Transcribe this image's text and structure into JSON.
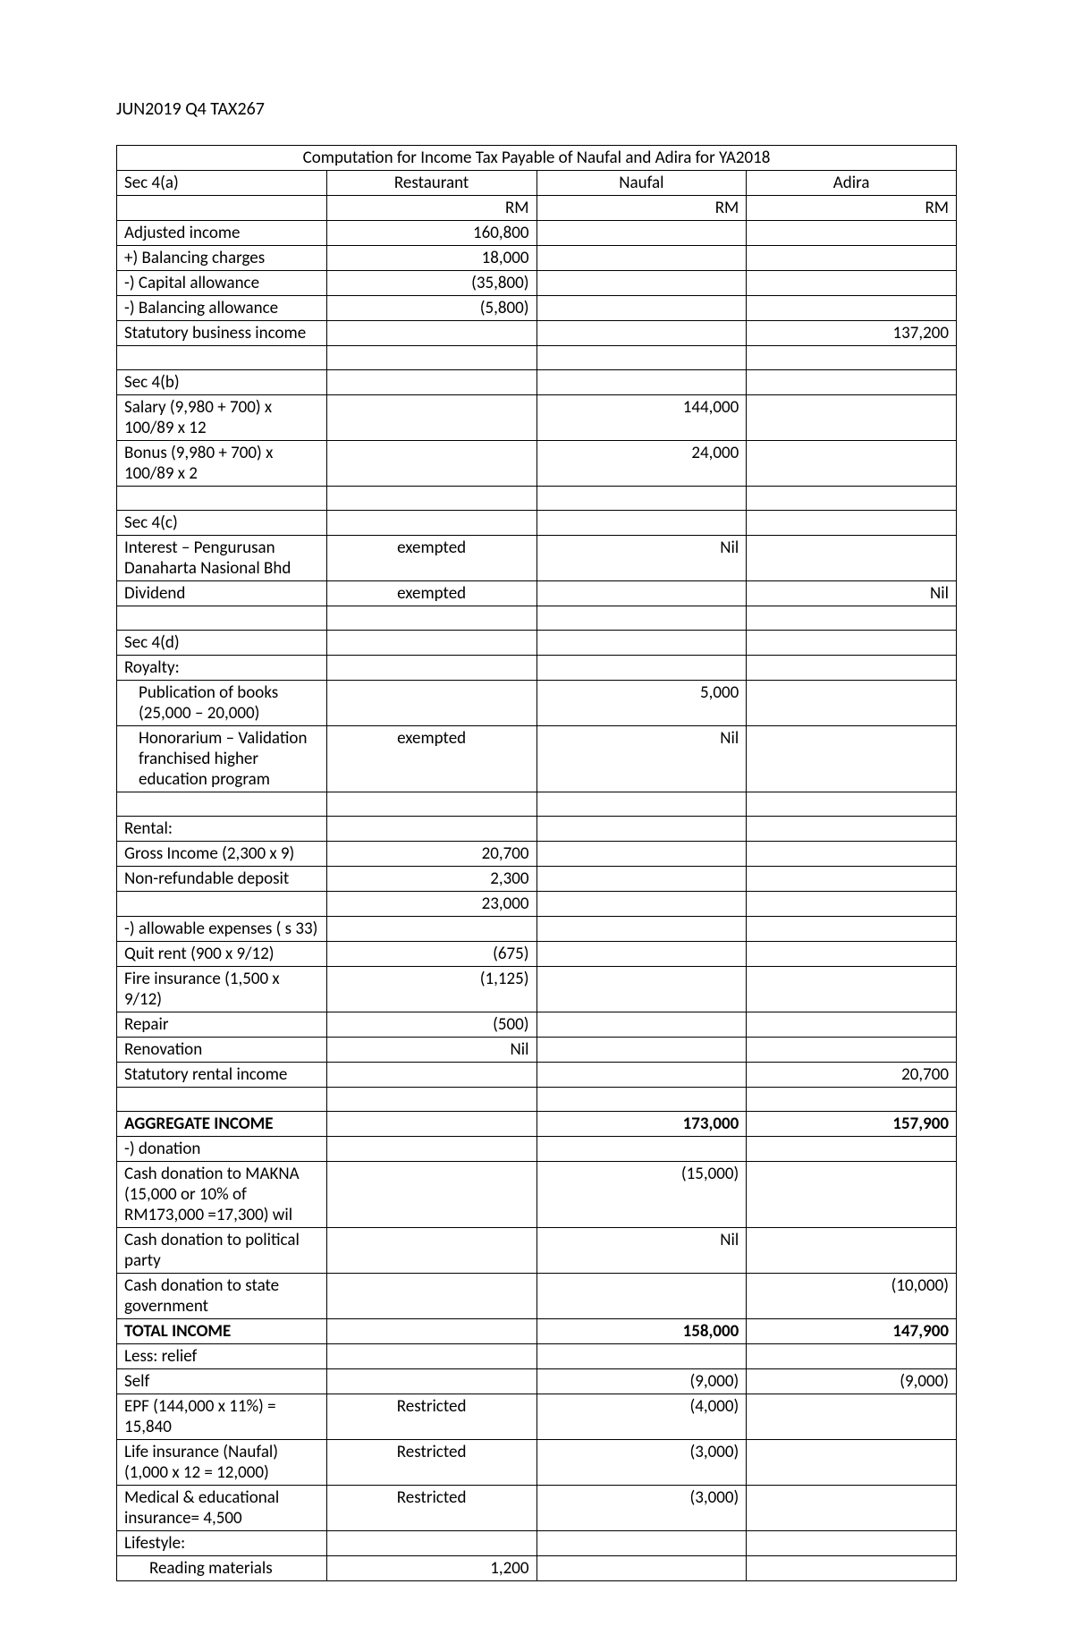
{
  "doc": {
    "title": "JUN2019 Q4 TAX267"
  },
  "table": {
    "caption": "Computation for Income Tax Payable of Naufal and Adira for YA2018",
    "col_headers": {
      "desc": "Sec 4(a)",
      "restaurant": "Restaurant",
      "naufal": "Naufal",
      "adira": "Adira"
    },
    "unit_row": {
      "restaurant": "RM",
      "naufal": "RM",
      "adira": "RM"
    },
    "rows": [
      {
        "desc": "Adjusted income",
        "r": "160,800",
        "n": "",
        "a": ""
      },
      {
        "desc": "+) Balancing charges",
        "r": "18,000",
        "n": "",
        "a": ""
      },
      {
        "desc": "-) Capital allowance",
        "r": "(35,800)",
        "n": "",
        "a": ""
      },
      {
        "desc": "-) Balancing allowance",
        "r": "(5,800)",
        "n": "",
        "a": ""
      },
      {
        "desc": "Statutory business income",
        "r": "",
        "n": "",
        "a": "137,200"
      },
      {
        "desc": "",
        "r": "",
        "n": "",
        "a": ""
      },
      {
        "desc": "Sec 4(b)",
        "r": "",
        "n": "",
        "a": ""
      },
      {
        "desc": "Salary (9,980 + 700) x 100/89 x 12",
        "r": "",
        "n": "144,000",
        "a": ""
      },
      {
        "desc": "Bonus (9,980 + 700) x 100/89 x 2",
        "r": "",
        "n": "24,000",
        "a": ""
      },
      {
        "desc": "",
        "r": "",
        "n": "",
        "a": ""
      },
      {
        "desc": "Sec 4(c)",
        "r": "",
        "n": "",
        "a": ""
      },
      {
        "desc": "Interest – Pengurusan Danaharta Nasional Bhd",
        "r": "exempted",
        "r_center": true,
        "n": "Nil",
        "a": ""
      },
      {
        "desc": "Dividend",
        "r": "exempted",
        "r_center": true,
        "n": "",
        "a": "Nil"
      },
      {
        "desc": "",
        "r": "",
        "n": "",
        "a": ""
      },
      {
        "desc": "Sec 4(d)",
        "r": "",
        "n": "",
        "a": ""
      },
      {
        "desc": "Royalty:",
        "r": "",
        "n": "",
        "a": ""
      },
      {
        "desc": "Publication of books (25,000 – 20,000)",
        "indent": 1,
        "r": "",
        "n": "5,000",
        "a": ""
      },
      {
        "desc": "Honorarium – Validation franchised higher education program",
        "indent": 1,
        "r": "exempted",
        "r_center": true,
        "n": "Nil",
        "a": ""
      },
      {
        "desc": "",
        "r": "",
        "n": "",
        "a": ""
      },
      {
        "desc": "Rental:",
        "r": "",
        "n": "",
        "a": ""
      },
      {
        "desc": "Gross Income (2,300 x 9)",
        "r": "20,700",
        "n": "",
        "a": ""
      },
      {
        "desc": "Non-refundable deposit",
        "r": "2,300",
        "n": "",
        "a": ""
      },
      {
        "desc": "",
        "r": "23,000",
        "n": "",
        "a": ""
      },
      {
        "desc": "-) allowable expenses ( s 33)",
        "r": "",
        "n": "",
        "a": ""
      },
      {
        "desc": "Quit rent (900 x 9/12)",
        "r": "(675)",
        "n": "",
        "a": ""
      },
      {
        "desc": "Fire insurance (1,500 x 9/12)",
        "r": "(1,125)",
        "n": "",
        "a": ""
      },
      {
        "desc": "Repair",
        "r": "(500)",
        "n": "",
        "a": ""
      },
      {
        "desc": "Renovation",
        "r": "Nil",
        "n": "",
        "a": ""
      },
      {
        "desc": "Statutory rental income",
        "r": "",
        "n": "",
        "a": "20,700"
      },
      {
        "desc": "",
        "r": "",
        "n": "",
        "a": ""
      },
      {
        "desc": "AGGREGATE INCOME",
        "bold": true,
        "r": "",
        "n": "173,000",
        "n_bold": true,
        "a": "157,900",
        "a_bold": true
      },
      {
        "desc": "-) donation",
        "r": "",
        "n": "",
        "a": ""
      },
      {
        "desc": "Cash donation to MAKNA (15,000 or 10% of RM173,000 =17,300) wil",
        "r": "",
        "n": "(15,000)",
        "a": ""
      },
      {
        "desc": "Cash donation to political party",
        "r": "",
        "n": "Nil",
        "a": ""
      },
      {
        "desc": "Cash donation to state government",
        "r": "",
        "n": "",
        "a": "(10,000)"
      },
      {
        "desc": "TOTAL INCOME",
        "bold": true,
        "r": "",
        "n": "158,000",
        "n_bold": true,
        "a": "147,900",
        "a_bold": true
      },
      {
        "desc": "Less: relief",
        "r": "",
        "n": "",
        "a": ""
      },
      {
        "desc": "Self",
        "r": "",
        "n": "(9,000)",
        "a": "(9,000)"
      },
      {
        "desc": "EPF (144,000 x 11%) = 15,840",
        "r": "Restricted",
        "r_center": true,
        "n": "(4,000)",
        "a": ""
      },
      {
        "desc": "Life insurance (Naufal) (1,000 x 12 = 12,000)",
        "r": "Restricted",
        "r_center": true,
        "n": "(3,000)",
        "a": ""
      },
      {
        "desc": "Medical & educational insurance= 4,500",
        "r": "Restricted",
        "r_center": true,
        "n": "(3,000)",
        "a": ""
      },
      {
        "desc": "Lifestyle:",
        "r": "",
        "n": "",
        "a": ""
      },
      {
        "desc": "Reading materials",
        "indent": 2,
        "r": "1,200",
        "n": "",
        "a": ""
      }
    ]
  }
}
